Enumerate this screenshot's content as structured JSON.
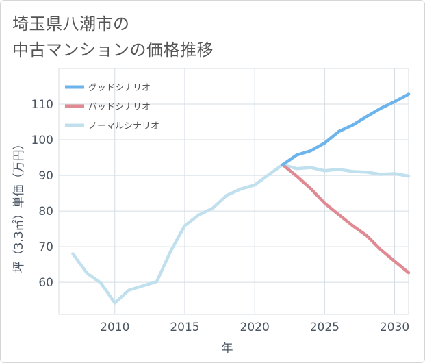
{
  "chart_data": {
    "type": "line",
    "title": "埼玉県八潮市の\n中古マンションの価格推移",
    "xlabel": "年",
    "ylabel": "坪（3.3㎡）単価（万円）",
    "xlim": [
      2006,
      2031
    ],
    "ylim": [
      51,
      120
    ],
    "x_ticks": [
      2010,
      2015,
      2020,
      2025,
      2030
    ],
    "y_ticks": [
      60,
      70,
      80,
      90,
      100,
      110
    ],
    "grid": true,
    "legend_position": "top-left",
    "series": [
      {
        "name": "グッドシナリオ",
        "color": "#6cb4ec",
        "x": [
          2022,
          2023,
          2024,
          2025,
          2026,
          2027,
          2028,
          2029,
          2030,
          2031
        ],
        "y": [
          93,
          95.7,
          96.9,
          99.1,
          102.3,
          104.1,
          106.5,
          108.8,
          110.7,
          112.8
        ]
      },
      {
        "name": "バッドシナリオ",
        "color": "#e08b93",
        "x": [
          2022,
          2023,
          2024,
          2025,
          2026,
          2027,
          2028,
          2029,
          2030,
          2031
        ],
        "y": [
          93,
          89.8,
          86.3,
          82.2,
          79,
          75.9,
          73.1,
          69.2,
          65.9,
          62.7
        ]
      },
      {
        "name": "ノーマルシナリオ",
        "color": "#c1e0ee",
        "x": [
          2007,
          2008,
          2009,
          2010,
          2011,
          2012,
          2013,
          2014,
          2015,
          2016,
          2017,
          2018,
          2019,
          2020,
          2021,
          2022,
          2023,
          2024,
          2025,
          2026,
          2027,
          2028,
          2029,
          2030,
          2031
        ],
        "y": [
          68,
          62.6,
          59.8,
          54.2,
          57.8,
          59,
          60.2,
          68.8,
          75.9,
          78.9,
          80.8,
          84.4,
          86.2,
          87.3,
          90.2,
          93,
          91.9,
          92.2,
          91.3,
          91.7,
          91.1,
          90.9,
          90.3,
          90.5,
          89.8
        ]
      }
    ]
  }
}
